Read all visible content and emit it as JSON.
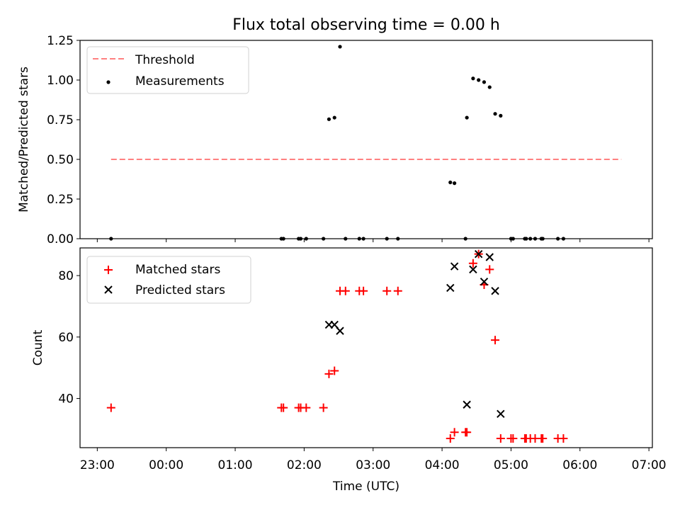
{
  "chart_data": [
    {
      "type": "scatter",
      "title": "Flux total observing time = 0.00 h",
      "xlabel": "",
      "ylabel": "Matched/Predicted stars",
      "xlim": [
        -0.25,
        8.05
      ],
      "ylim": [
        0,
        1.25
      ],
      "yticks": [
        0,
        0.25,
        0.5,
        0.75,
        1.0,
        1.25
      ],
      "ytick_labels": [
        "0.00",
        "0.25",
        "0.50",
        "0.75",
        "1.00",
        "1.25"
      ],
      "legend_position": "top-left",
      "series": [
        {
          "name": "Threshold",
          "kind": "line",
          "style": "dashed",
          "color": "#ff8080",
          "points": [
            [
              0.2,
              0.5
            ],
            [
              7.6,
              0.5
            ]
          ]
        },
        {
          "name": "Measurements",
          "kind": "scatter",
          "marker": "dot",
          "color": "#000000",
          "points": [
            [
              0.2,
              0.0
            ],
            [
              2.67,
              0.0
            ],
            [
              2.7,
              0.0
            ],
            [
              2.92,
              0.0
            ],
            [
              2.95,
              0.0
            ],
            [
              3.03,
              0.0
            ],
            [
              3.28,
              0.0
            ],
            [
              3.36,
              0.753
            ],
            [
              3.44,
              0.763
            ],
            [
              3.52,
              1.21
            ],
            [
              3.6,
              0.0
            ],
            [
              3.8,
              0.0
            ],
            [
              3.86,
              0.0
            ],
            [
              4.2,
              0.0
            ],
            [
              4.36,
              0.0
            ],
            [
              5.12,
              0.355
            ],
            [
              5.18,
              0.35
            ],
            [
              5.34,
              0.0
            ],
            [
              5.36,
              0.763
            ],
            [
              5.45,
              1.01
            ],
            [
              5.53,
              1.0
            ],
            [
              5.61,
              0.987
            ],
            [
              5.69,
              0.955
            ],
            [
              5.77,
              0.787
            ],
            [
              5.85,
              0.775
            ],
            [
              6.0,
              0.0
            ],
            [
              6.03,
              0.0
            ],
            [
              6.2,
              0.0
            ],
            [
              6.22,
              0.0
            ],
            [
              6.28,
              0.0
            ],
            [
              6.35,
              0.0
            ],
            [
              6.44,
              0.0
            ],
            [
              6.46,
              0.0
            ],
            [
              6.68,
              0.0
            ],
            [
              6.76,
              0.0
            ]
          ]
        }
      ]
    },
    {
      "type": "scatter",
      "title": "",
      "xlabel": "Time (UTC)",
      "ylabel": "Count",
      "xlim": [
        -0.25,
        8.05
      ],
      "ylim": [
        24,
        89
      ],
      "yticks": [
        40,
        60,
        80
      ],
      "ytick_labels": [
        "40",
        "60",
        "80"
      ],
      "xticks": [
        0,
        1,
        2,
        3,
        4,
        5,
        6,
        7,
        8
      ],
      "xtick_labels": [
        "23:00",
        "00:00",
        "01:00",
        "02:00",
        "03:00",
        "04:00",
        "05:00",
        "06:00",
        "07:00"
      ],
      "legend_position": "top-left",
      "series": [
        {
          "name": "Matched stars",
          "kind": "scatter",
          "marker": "plus",
          "color": "#ff0000",
          "points": [
            [
              0.2,
              37
            ],
            [
              2.67,
              37
            ],
            [
              2.7,
              37
            ],
            [
              2.92,
              37
            ],
            [
              2.95,
              37
            ],
            [
              3.03,
              37
            ],
            [
              3.28,
              37
            ],
            [
              3.36,
              48
            ],
            [
              3.44,
              49
            ],
            [
              3.52,
              75
            ],
            [
              3.6,
              75
            ],
            [
              3.8,
              75
            ],
            [
              3.86,
              75
            ],
            [
              4.2,
              75
            ],
            [
              4.36,
              75
            ],
            [
              5.12,
              27
            ],
            [
              5.18,
              29
            ],
            [
              5.34,
              29
            ],
            [
              5.36,
              29
            ],
            [
              5.45,
              84
            ],
            [
              5.53,
              87
            ],
            [
              5.61,
              77
            ],
            [
              5.69,
              82
            ],
            [
              5.77,
              59
            ],
            [
              5.85,
              27
            ],
            [
              6.0,
              27
            ],
            [
              6.03,
              27
            ],
            [
              6.2,
              27
            ],
            [
              6.22,
              27
            ],
            [
              6.28,
              27
            ],
            [
              6.35,
              27
            ],
            [
              6.44,
              27
            ],
            [
              6.46,
              27
            ],
            [
              6.68,
              27
            ],
            [
              6.76,
              27
            ]
          ]
        },
        {
          "name": "Predicted stars",
          "kind": "scatter",
          "marker": "x",
          "color": "#000000",
          "points": [
            [
              3.36,
              64
            ],
            [
              3.44,
              64
            ],
            [
              3.52,
              62
            ],
            [
              5.12,
              76
            ],
            [
              5.18,
              83
            ],
            [
              5.36,
              38
            ],
            [
              5.45,
              82
            ],
            [
              5.53,
              87
            ],
            [
              5.61,
              78
            ],
            [
              5.69,
              86
            ],
            [
              5.77,
              75
            ],
            [
              5.85,
              35
            ]
          ]
        }
      ]
    }
  ]
}
